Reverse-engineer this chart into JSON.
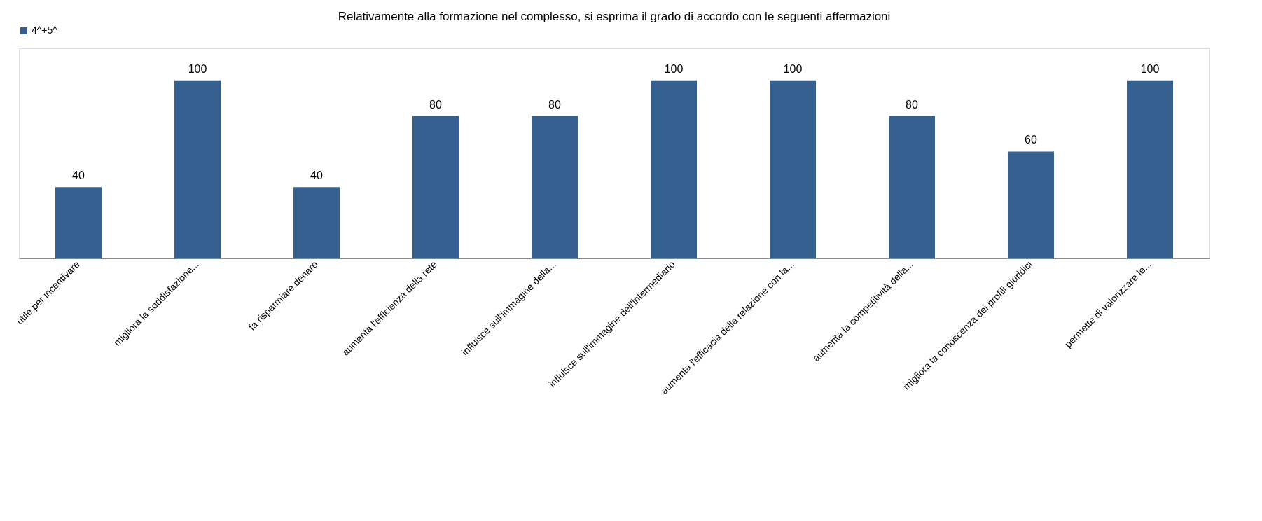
{
  "chart_data": {
    "type": "bar",
    "title": "Relativamente alla formazione nel complesso, si esprima il grado di accordo con le seguenti affermazioni",
    "categories": [
      "utile per incentivare",
      "migliora la soddisfazione...",
      "fa risparmiare denaro",
      "aumenta l'efficienza della rete",
      "influisce sull'immagine della...",
      "influisce sull'immagine dell'intermediario",
      "aumenta l'efficacia della relazione con la...",
      "aumenta la competitività della...",
      "migliora la conoscenza dei profili giuridici",
      "permette di valorizzare le..."
    ],
    "series": [
      {
        "name": "4^+5^",
        "color": "#36608f",
        "values": [
          40,
          100,
          40,
          80,
          80,
          100,
          100,
          80,
          60,
          100
        ]
      }
    ],
    "data_labels": true,
    "legend": "top",
    "grid": false
  }
}
